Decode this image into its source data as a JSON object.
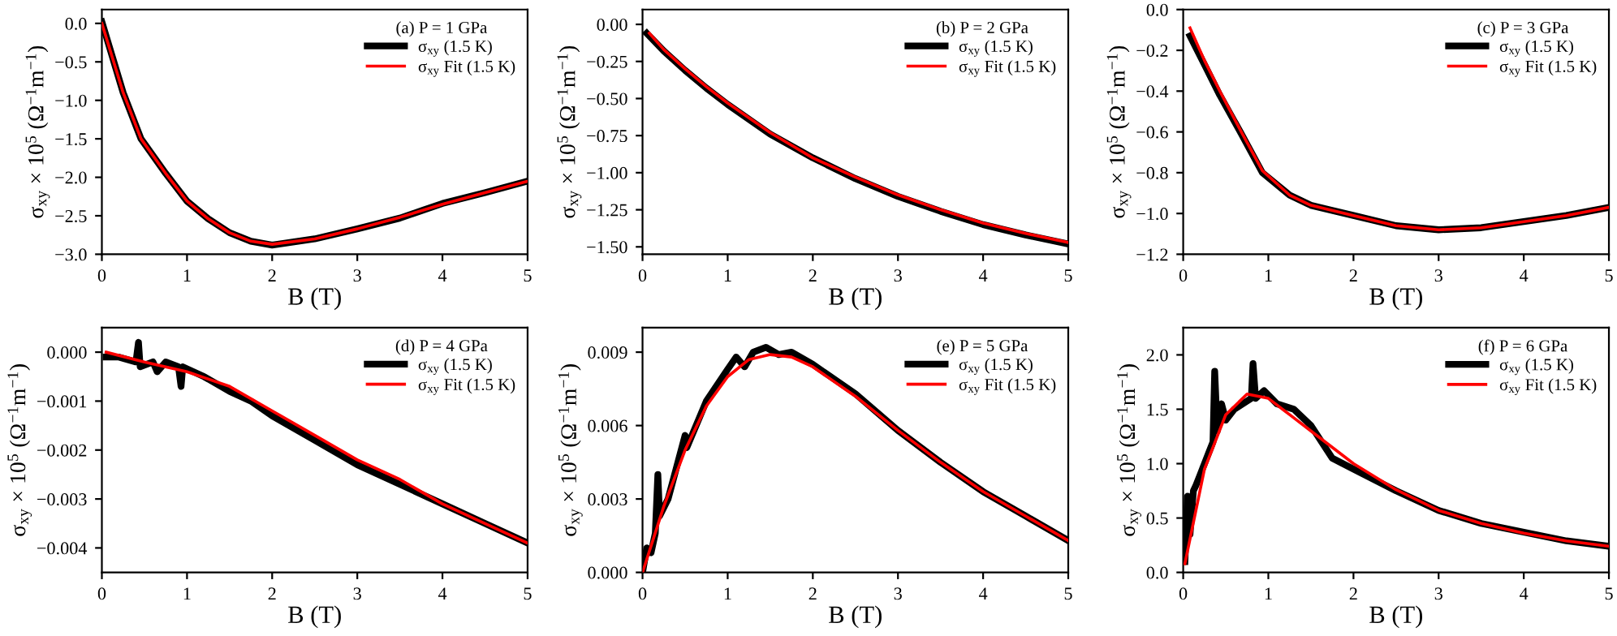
{
  "chart_data": [
    {
      "type": "line",
      "legend_title": "(a) P = 1 GPa",
      "xlabel": "B (T)",
      "ylabel": "σ$_{xy}$ × 10$^{5}$ (Ω$^{−1}$m$^{−1}$)",
      "xlim": [
        0,
        5
      ],
      "xticks": [
        0,
        1,
        2,
        3,
        4,
        5
      ],
      "ylim": [
        -3.0,
        0.18
      ],
      "yticks": [
        {
          "value": 0.0,
          "label": "0.0"
        },
        {
          "value": -0.5,
          "label": "−0.5"
        },
        {
          "value": -1.0,
          "label": "−1.0"
        },
        {
          "value": -1.5,
          "label": "−1.5"
        },
        {
          "value": -2.0,
          "label": "−2.0"
        },
        {
          "value": -2.5,
          "label": "−2.5"
        },
        {
          "value": -3.0,
          "label": "−3.0"
        }
      ],
      "legend": "top right",
      "grid": false,
      "series": [
        {
          "name": "σ$_{xy}$ (1.5 K)",
          "color": "#000000",
          "x": [
            0.0,
            0.25,
            0.46,
            0.75,
            1.0,
            1.25,
            1.5,
            1.75,
            2.0,
            2.5,
            3.0,
            3.5,
            4.0,
            4.5,
            5.0
          ],
          "values": [
            0.02,
            -0.9,
            -1.5,
            -1.95,
            -2.31,
            -2.54,
            -2.72,
            -2.83,
            -2.88,
            -2.8,
            -2.67,
            -2.53,
            -2.34,
            -2.2,
            -2.05
          ]
        },
        {
          "name": "σ$_{xy}$ Fit (1.5 K)",
          "color": "#ff0000",
          "x": [
            0.0,
            0.25,
            0.46,
            0.75,
            1.0,
            1.25,
            1.5,
            1.75,
            2.0,
            2.5,
            3.0,
            3.5,
            4.0,
            4.5,
            5.0
          ],
          "values": [
            0.0,
            -0.9,
            -1.5,
            -1.95,
            -2.31,
            -2.54,
            -2.72,
            -2.83,
            -2.87,
            -2.8,
            -2.67,
            -2.52,
            -2.35,
            -2.2,
            -2.05
          ]
        }
      ]
    },
    {
      "type": "line",
      "legend_title": "(b) P = 2 GPa",
      "xlabel": "B (T)",
      "ylabel": "σ$_{xy}$ × 10$^{5}$ (Ω$^{−1}$m$^{−1}$)",
      "xlim": [
        0,
        5
      ],
      "xticks": [
        0,
        1,
        2,
        3,
        4,
        5
      ],
      "ylim": [
        -1.55,
        0.1
      ],
      "yticks": [
        {
          "value": 0.0,
          "label": "0.00"
        },
        {
          "value": -0.25,
          "label": "−0.25"
        },
        {
          "value": -0.5,
          "label": "−0.50"
        },
        {
          "value": -0.75,
          "label": "−0.75"
        },
        {
          "value": -1.0,
          "label": "−1.00"
        },
        {
          "value": -1.25,
          "label": "−1.25"
        },
        {
          "value": -1.5,
          "label": "−1.50"
        }
      ],
      "legend": "top right",
      "grid": false,
      "series": [
        {
          "name": "σ$_{xy}$ (1.5 K)",
          "color": "#000000",
          "x": [
            0.05,
            0.25,
            0.5,
            0.75,
            1.0,
            1.5,
            2.0,
            2.5,
            3.0,
            3.5,
            4.0,
            4.5,
            5.0
          ],
          "values": [
            -0.06,
            -0.18,
            -0.31,
            -0.43,
            -0.54,
            -0.74,
            -0.9,
            -1.04,
            -1.16,
            -1.26,
            -1.35,
            -1.42,
            -1.48
          ]
        },
        {
          "name": "σ$_{xy}$ Fit (1.5 K)",
          "color": "#ff0000",
          "x": [
            0.08,
            0.25,
            0.5,
            0.75,
            1.0,
            1.5,
            2.0,
            2.5,
            3.0,
            3.5,
            4.0,
            4.5,
            5.0
          ],
          "values": [
            -0.06,
            -0.17,
            -0.3,
            -0.42,
            -0.53,
            -0.73,
            -0.9,
            -1.03,
            -1.15,
            -1.25,
            -1.34,
            -1.41,
            -1.47
          ]
        }
      ]
    },
    {
      "type": "line",
      "legend_title": "(c) P = 3 GPa",
      "xlabel": "B (T)",
      "ylabel": "σ$_{xy}$ × 10$^{5}$ (Ω$^{−1}$m$^{−1}$)",
      "xlim": [
        0,
        5
      ],
      "xticks": [
        0,
        1,
        2,
        3,
        4,
        5
      ],
      "ylim": [
        -1.2,
        0.0
      ],
      "yticks": [
        {
          "value": 0.0,
          "label": "0.0"
        },
        {
          "value": -0.2,
          "label": "−0.2"
        },
        {
          "value": -0.4,
          "label": "−0.4"
        },
        {
          "value": -0.6,
          "label": "−0.6"
        },
        {
          "value": -0.8,
          "label": "−0.8"
        },
        {
          "value": -1.0,
          "label": "−1.0"
        },
        {
          "value": -1.2,
          "label": "−1.2"
        }
      ],
      "legend": "top right",
      "grid": false,
      "series": [
        {
          "name": "σ$_{xy}$ (1.5 K)",
          "color": "#000000",
          "x": [
            0.08,
            0.25,
            0.43,
            0.67,
            0.93,
            1.25,
            1.5,
            2.0,
            2.5,
            3.0,
            3.5,
            4.0,
            4.5,
            5.0
          ],
          "values": [
            -0.13,
            -0.27,
            -0.42,
            -0.6,
            -0.8,
            -0.91,
            -0.96,
            -1.01,
            -1.06,
            -1.08,
            -1.07,
            -1.04,
            -1.01,
            -0.97
          ]
        },
        {
          "name": "σ$_{xy}$ Fit (1.5 K)",
          "color": "#ff0000",
          "x": [
            0.08,
            0.25,
            0.43,
            0.67,
            0.93,
            1.25,
            1.5,
            2.0,
            2.5,
            3.0,
            3.5,
            4.0,
            4.5,
            5.0
          ],
          "values": [
            -0.09,
            -0.25,
            -0.4,
            -0.59,
            -0.79,
            -0.91,
            -0.96,
            -1.01,
            -1.06,
            -1.08,
            -1.07,
            -1.04,
            -1.01,
            -0.97
          ]
        }
      ]
    },
    {
      "type": "line",
      "legend_title": "(d) P = 4 GPa",
      "xlabel": "B (T)",
      "ylabel": "σ$_{xy}$ × 10$^{5}$ (Ω$^{−1}$m$^{−1}$)",
      "xlim": [
        0,
        5
      ],
      "xticks": [
        0,
        1,
        2,
        3,
        4,
        5
      ],
      "ylim": [
        -0.0045,
        0.0005
      ],
      "yticks": [
        {
          "value": 0.0,
          "label": "0.000"
        },
        {
          "value": -0.001,
          "label": "−0.001"
        },
        {
          "value": -0.002,
          "label": "−0.002"
        },
        {
          "value": -0.003,
          "label": "−0.003"
        },
        {
          "value": -0.004,
          "label": "−0.004"
        }
      ],
      "legend": "top right",
      "grid": false,
      "series": [
        {
          "name": "σ$_{xy}$ (1.5 K)",
          "color": "#000000",
          "x": [
            0.05,
            0.2,
            0.4,
            0.43,
            0.45,
            0.6,
            0.65,
            0.75,
            0.9,
            0.93,
            0.95,
            1.2,
            1.5,
            1.75,
            2.0,
            2.5,
            3.0,
            3.5,
            4.0,
            4.5,
            5.0
          ],
          "values": [
            -0.0001,
            -0.0001,
            -0.0002,
            0.0002,
            -0.0003,
            -0.0002,
            -0.0004,
            -0.0002,
            -0.0003,
            -0.0007,
            -0.0003,
            -0.0005,
            -0.0008,
            -0.001,
            -0.0013,
            -0.0018,
            -0.0023,
            -0.0027,
            -0.0031,
            -0.0035,
            -0.0039
          ]
        },
        {
          "name": "σ$_{xy}$ Fit (1.5 K)",
          "color": "#ff0000",
          "x": [
            0.05,
            0.5,
            1.0,
            1.5,
            2.0,
            2.5,
            3.0,
            3.5,
            4.0,
            4.5,
            5.0
          ],
          "values": [
            0.0,
            -0.0002,
            -0.0004,
            -0.0007,
            -0.0012,
            -0.0017,
            -0.0022,
            -0.0026,
            -0.0031,
            -0.0035,
            -0.0039
          ]
        }
      ]
    },
    {
      "type": "line",
      "legend_title": "(e) P = 5 GPa",
      "xlabel": "B (T)",
      "ylabel": "σ$_{xy}$ × 10$^{5}$ (Ω$^{−1}$m$^{−1}$)",
      "xlim": [
        0,
        5
      ],
      "xticks": [
        0,
        1,
        2,
        3,
        4,
        5
      ],
      "ylim": [
        0,
        0.01
      ],
      "yticks": [
        {
          "value": 0.0,
          "label": "0.000"
        },
        {
          "value": 0.003,
          "label": "0.003"
        },
        {
          "value": 0.006,
          "label": "0.006"
        },
        {
          "value": 0.009,
          "label": "0.009"
        }
      ],
      "legend": "top right",
      "grid": false,
      "series": [
        {
          "name": "σ$_{xy}$ (1.5 K)",
          "color": "#000000",
          "x": [
            0.0,
            0.05,
            0.1,
            0.15,
            0.18,
            0.2,
            0.3,
            0.5,
            0.52,
            0.75,
            1.0,
            1.1,
            1.2,
            1.3,
            1.45,
            1.6,
            1.75,
            2.0,
            2.5,
            3.0,
            3.5,
            4.0,
            4.5,
            5.0
          ],
          "values": [
            0.0,
            0.001,
            0.0008,
            0.0016,
            0.004,
            0.0023,
            0.003,
            0.0056,
            0.0051,
            0.007,
            0.0083,
            0.0088,
            0.0084,
            0.009,
            0.0092,
            0.0089,
            0.009,
            0.0085,
            0.0073,
            0.0058,
            0.0045,
            0.0033,
            0.0023,
            0.0013
          ]
        },
        {
          "name": "σ$_{xy}$ Fit (1.5 K)",
          "color": "#ff0000",
          "x": [
            0.0,
            0.25,
            0.5,
            0.75,
            1.0,
            1.25,
            1.5,
            1.75,
            2.0,
            2.5,
            3.0,
            3.5,
            4.0,
            4.5,
            5.0
          ],
          "values": [
            0.0,
            0.0027,
            0.005,
            0.0068,
            0.008,
            0.0087,
            0.0089,
            0.0088,
            0.0084,
            0.0072,
            0.0058,
            0.0045,
            0.0033,
            0.0023,
            0.0013
          ]
        }
      ]
    },
    {
      "type": "line",
      "legend_title": "(f) P = 6 GPa",
      "xlabel": "B (T)",
      "ylabel": "σ$_{xy}$ × 10$^{5}$ (Ω$^{−1}$m$^{−1}$)",
      "xlim": [
        0,
        5
      ],
      "xticks": [
        0,
        1,
        2,
        3,
        4,
        5
      ],
      "ylim": [
        0,
        2.25
      ],
      "yticks": [
        {
          "value": 0.0,
          "label": "0.0"
        },
        {
          "value": 0.5,
          "label": "0.5"
        },
        {
          "value": 1.0,
          "label": "1.0"
        },
        {
          "value": 1.5,
          "label": "1.5"
        },
        {
          "value": 2.0,
          "label": "2.0"
        }
      ],
      "legend": "top right",
      "grid": false,
      "series": [
        {
          "name": "σ$_{xy}$ (1.5 K)",
          "color": "#000000",
          "x": [
            0.02,
            0.05,
            0.08,
            0.12,
            0.15,
            0.2,
            0.3,
            0.35,
            0.37,
            0.4,
            0.45,
            0.5,
            0.6,
            0.7,
            0.8,
            0.82,
            0.85,
            0.95,
            1.1,
            1.3,
            1.5,
            1.75,
            2.0,
            2.5,
            3.0,
            3.5,
            4.0,
            4.5,
            5.0
          ],
          "values": [
            0.1,
            0.7,
            0.35,
            0.75,
            0.8,
            0.9,
            1.1,
            1.2,
            1.85,
            1.3,
            1.55,
            1.4,
            1.5,
            1.55,
            1.6,
            1.92,
            1.6,
            1.67,
            1.55,
            1.5,
            1.35,
            1.05,
            0.95,
            0.75,
            0.57,
            0.45,
            0.37,
            0.29,
            0.24
          ]
        },
        {
          "name": "σ$_{xy}$ Fit (1.5 K)",
          "color": "#ff0000",
          "x": [
            0.02,
            0.25,
            0.5,
            0.75,
            1.0,
            1.25,
            1.5,
            2.0,
            2.5,
            3.0,
            3.5,
            4.0,
            4.5,
            5.0
          ],
          "values": [
            0.08,
            0.95,
            1.45,
            1.64,
            1.6,
            1.45,
            1.3,
            1.0,
            0.76,
            0.57,
            0.45,
            0.36,
            0.29,
            0.24
          ]
        }
      ]
    }
  ]
}
